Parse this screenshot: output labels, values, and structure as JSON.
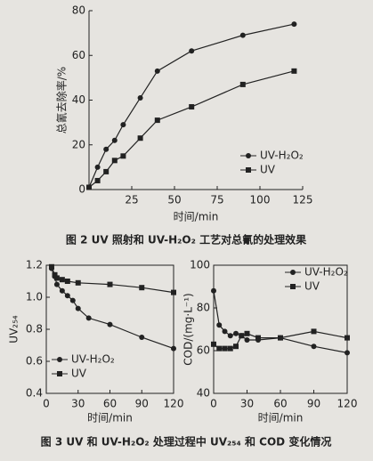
{
  "figure_captions": [
    "图 2 UV 照射和 UV-H₂O₂ 工艺对总氰的处理效果",
    "图 3 UV 和 UV-H₂O₂ 处理过程中 UV₂₅₄ 和 COD 变化情况"
  ],
  "chart_data": [
    {
      "type": "line",
      "xlabel": "时间/min",
      "ylabel": "总氰去除率/%",
      "xlim": [
        0,
        125
      ],
      "xticks": [
        25,
        50,
        75,
        100,
        125
      ],
      "ylim": [
        0,
        80
      ],
      "yticks": [
        0,
        20,
        40,
        60,
        80
      ],
      "legend": "lower-right",
      "box": false,
      "series": [
        {
          "name": "UV-H₂O₂",
          "color": "#222222",
          "marker": "circle",
          "x": [
            0,
            5,
            10,
            15,
            20,
            30,
            40,
            60,
            90,
            120
          ],
          "values": [
            1,
            10,
            18,
            22,
            29,
            41,
            53,
            62,
            69,
            74
          ]
        },
        {
          "name": "UV",
          "color": "#222222",
          "marker": "square",
          "x": [
            0,
            5,
            10,
            15,
            20,
            30,
            40,
            60,
            90,
            120
          ],
          "values": [
            1,
            4,
            8,
            13,
            15,
            23,
            31,
            37,
            47,
            53
          ]
        }
      ]
    },
    {
      "type": "line",
      "xlabel": "时间/min",
      "ylabel": "UV₂₅₄",
      "xlim": [
        0,
        120
      ],
      "xticks": [
        0,
        30,
        60,
        90,
        120
      ],
      "ylim": [
        0.4,
        1.2
      ],
      "yticks": [
        0.4,
        0.6,
        0.8,
        {
          "value": 1,
          "label": "1.0"
        },
        1.2
      ],
      "legend": "lower-left",
      "box": true,
      "series": [
        {
          "name": "UV-H₂O₂",
          "color": "#222222",
          "marker": "circle",
          "x": [
            5,
            8,
            10,
            15,
            20,
            25,
            30,
            40,
            60,
            90,
            120
          ],
          "values": [
            1.18,
            1.13,
            1.08,
            1.04,
            1.01,
            0.98,
            0.93,
            0.87,
            0.83,
            0.75,
            0.68
          ]
        },
        {
          "name": "UV",
          "color": "#222222",
          "marker": "square",
          "x": [
            5,
            8,
            10,
            15,
            20,
            30,
            60,
            90,
            120
          ],
          "values": [
            1.19,
            1.14,
            1.12,
            1.11,
            1.1,
            1.09,
            1.08,
            1.06,
            1.03
          ]
        }
      ]
    },
    {
      "type": "line",
      "xlabel": "时间/min",
      "ylabel": "COD/(mg·L⁻¹)",
      "xlim": [
        0,
        120
      ],
      "xticks": [
        0,
        30,
        60,
        90,
        120
      ],
      "ylim": [
        40,
        100
      ],
      "yticks": [
        40,
        60,
        80,
        100
      ],
      "legend": "upper-right",
      "box": true,
      "series": [
        {
          "name": "UV-H₂O₂",
          "color": "#222222",
          "marker": "circle",
          "x": [
            0,
            5,
            10,
            15,
            20,
            25,
            30,
            40,
            60,
            90,
            120
          ],
          "values": [
            88,
            72,
            69,
            67,
            68,
            67,
            65,
            65,
            66,
            62,
            59
          ]
        },
        {
          "name": "UV",
          "color": "#222222",
          "marker": "square",
          "x": [
            0,
            5,
            10,
            15,
            20,
            25,
            30,
            40,
            60,
            90,
            120
          ],
          "values": [
            63,
            61,
            61,
            61,
            62,
            67,
            68,
            66,
            66,
            69,
            66
          ]
        }
      ]
    }
  ]
}
